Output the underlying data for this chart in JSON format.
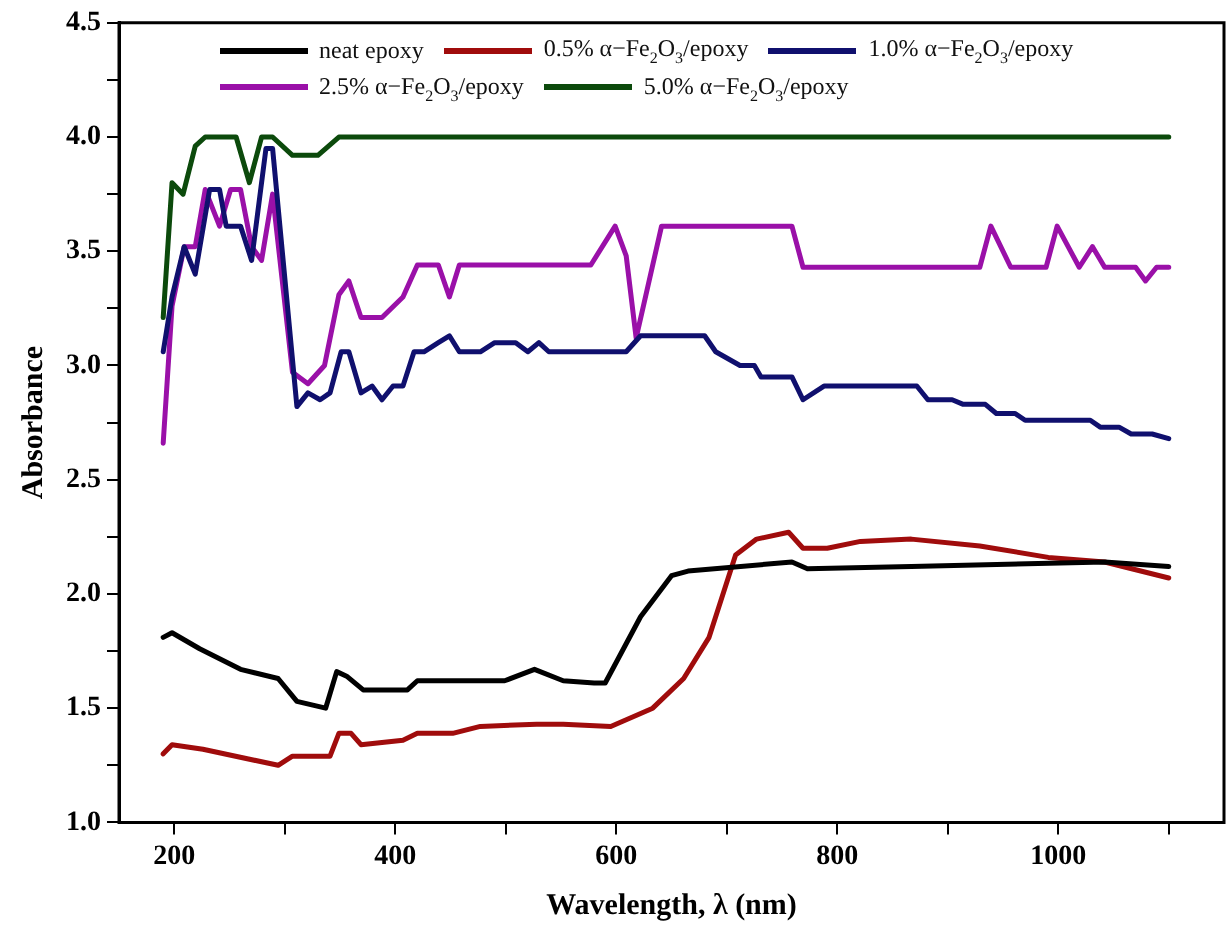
{
  "chart_data": {
    "type": "line",
    "xlabel": "Wavelength, λ (nm)",
    "ylabel": "Absorbance",
    "xlim": [
      150,
      1150
    ],
    "xticks": [
      200,
      {
        "value": 300,
        "label": null
      },
      400,
      {
        "value": 500,
        "label": null
      },
      600,
      {
        "value": 700,
        "label": null
      },
      800,
      {
        "value": 900,
        "label": null
      },
      1000,
      {
        "value": 1100,
        "label": null
      }
    ],
    "ylim": [
      1.0,
      4.5
    ],
    "yticks": [
      {
        "value": 1.0,
        "label": "1.0"
      },
      {
        "value": 1.25,
        "label": null
      },
      {
        "value": 1.5,
        "label": "1.5"
      },
      {
        "value": 1.75,
        "label": null
      },
      {
        "value": 2.0,
        "label": "2.0"
      },
      {
        "value": 2.25,
        "label": null
      },
      {
        "value": 2.5,
        "label": "2.5"
      },
      {
        "value": 2.75,
        "label": null
      },
      {
        "value": 3.0,
        "label": "3.0"
      },
      {
        "value": 3.25,
        "label": null
      },
      {
        "value": 3.5,
        "label": "3.5"
      },
      {
        "value": 3.75,
        "label": null
      },
      {
        "value": 4.0,
        "label": "4.0"
      },
      {
        "value": 4.25,
        "label": null
      },
      {
        "value": 4.5,
        "label": "4.5"
      }
    ],
    "grid": false,
    "legend": "top",
    "marker": "none",
    "line_style": "solid",
    "series": [
      {
        "name": "neat epoxy",
        "color": "#000000",
        "x": [
          190,
          198,
          223,
          260,
          294,
          311,
          337,
          347,
          356,
          371,
          411,
          420,
          499,
          526,
          552,
          580,
          590,
          622,
          650,
          665,
          759,
          773,
          867,
          1042,
          1100
        ],
        "values": [
          1.81,
          1.83,
          1.76,
          1.67,
          1.63,
          1.53,
          1.5,
          1.66,
          1.64,
          1.58,
          1.58,
          1.62,
          1.62,
          1.67,
          1.62,
          1.61,
          1.61,
          1.9,
          2.08,
          2.1,
          2.14,
          2.11,
          2.12,
          2.14,
          2.12
        ]
      },
      {
        "name": "0.5% α−Fe$_{2}$O$_{3}$/epoxy",
        "color": "#a00c0c",
        "x": [
          190,
          198,
          226,
          294,
          307,
          341,
          349,
          360,
          369,
          407,
          420,
          452,
          477,
          528,
          552,
          595,
          633,
          661,
          684,
          708,
          727,
          756,
          769,
          791,
          821,
          867,
          929,
          991,
          1042,
          1100
        ],
        "values": [
          1.3,
          1.34,
          1.32,
          1.25,
          1.29,
          1.29,
          1.39,
          1.39,
          1.34,
          1.36,
          1.39,
          1.39,
          1.42,
          1.43,
          1.43,
          1.42,
          1.5,
          1.63,
          1.81,
          2.17,
          2.24,
          2.27,
          2.2,
          2.2,
          2.23,
          2.24,
          2.21,
          2.16,
          2.14,
          2.07
        ]
      },
      {
        "name": "1.0% α−Fe$_{2}$O$_{3}$/epoxy",
        "color": "#10106e",
        "x": [
          190,
          198,
          209,
          219,
          232,
          241,
          247,
          260,
          270,
          283,
          289,
          311,
          321,
          332,
          341,
          351,
          358,
          369,
          379,
          388,
          398,
          407,
          417,
          426,
          439,
          449,
          458,
          477,
          490,
          509,
          520,
          530,
          539,
          609,
          622,
          680,
          690,
          712,
          725,
          731,
          759,
          769,
          788,
          872,
          882,
          904,
          914,
          934,
          944,
          961,
          970,
          1029,
          1038,
          1055,
          1066,
          1085,
          1100
        ],
        "values": [
          3.06,
          3.3,
          3.52,
          3.4,
          3.77,
          3.77,
          3.61,
          3.61,
          3.46,
          3.95,
          3.95,
          2.82,
          2.88,
          2.85,
          2.88,
          3.06,
          3.06,
          2.88,
          2.91,
          2.85,
          2.91,
          2.91,
          3.06,
          3.06,
          3.1,
          3.13,
          3.06,
          3.06,
          3.1,
          3.1,
          3.06,
          3.1,
          3.06,
          3.06,
          3.13,
          3.13,
          3.06,
          3.0,
          3.0,
          2.95,
          2.95,
          2.85,
          2.91,
          2.91,
          2.85,
          2.85,
          2.83,
          2.83,
          2.79,
          2.79,
          2.76,
          2.76,
          2.73,
          2.73,
          2.7,
          2.7,
          2.68
        ]
      },
      {
        "name": "2.5% α−Fe$_{2}$O$_{3}$/epoxy",
        "color": "#9a10a8",
        "x": [
          190,
          198,
          209,
          219,
          228,
          241,
          251,
          260,
          270,
          279,
          289,
          307,
          321,
          336,
          349,
          358,
          369,
          388,
          407,
          420,
          439,
          449,
          458,
          577,
          599,
          609,
          618,
          641,
          759,
          769,
          929,
          939,
          957,
          989,
          999,
          1019,
          1031,
          1042,
          1070,
          1079,
          1089,
          1100
        ],
        "values": [
          2.66,
          3.26,
          3.52,
          3.52,
          3.77,
          3.61,
          3.77,
          3.77,
          3.52,
          3.46,
          3.75,
          2.97,
          2.92,
          3.0,
          3.31,
          3.37,
          3.21,
          3.21,
          3.3,
          3.44,
          3.44,
          3.3,
          3.44,
          3.44,
          3.61,
          3.48,
          3.12,
          3.61,
          3.61,
          3.43,
          3.43,
          3.61,
          3.43,
          3.43,
          3.61,
          3.43,
          3.52,
          3.43,
          3.43,
          3.37,
          3.43,
          3.43
        ]
      },
      {
        "name": "5.0% α−Fe$_{2}$O$_{3}$/epoxy",
        "color": "#0c4a0c",
        "x": [
          190,
          198,
          208,
          219,
          228,
          256,
          268,
          279,
          289,
          307,
          330,
          349,
          1100
        ],
        "values": [
          3.21,
          3.8,
          3.75,
          3.96,
          4.0,
          4.0,
          3.8,
          4.0,
          4.0,
          3.92,
          3.92,
          4.0,
          4.0
        ]
      }
    ]
  }
}
